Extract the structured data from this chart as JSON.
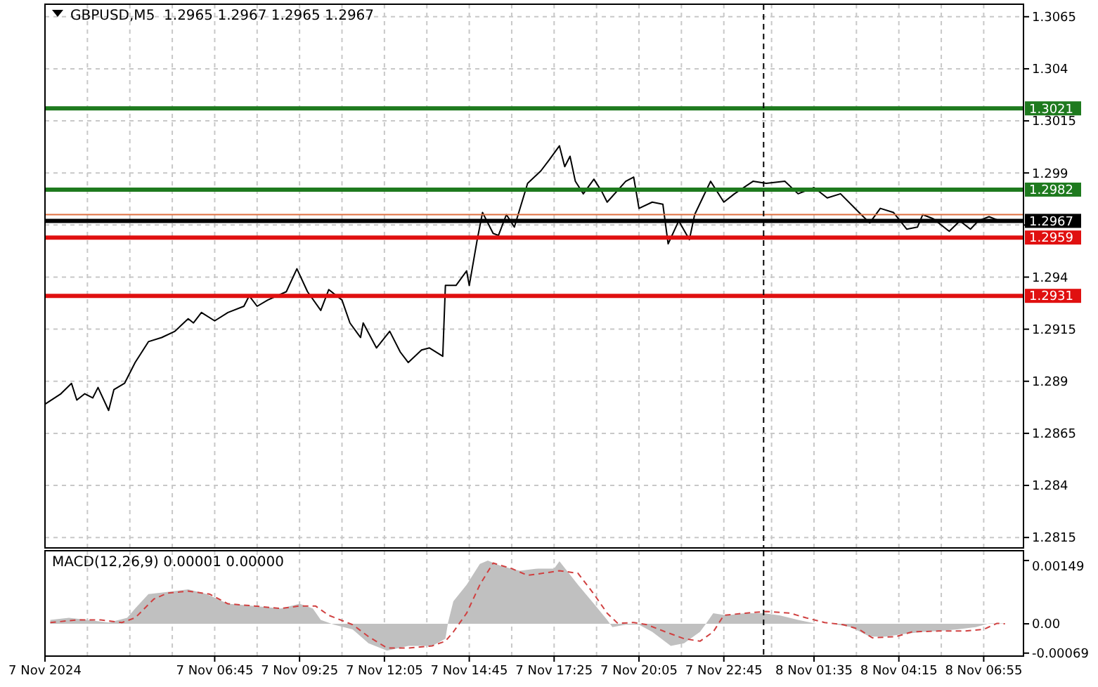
{
  "chart_data": [
    {
      "type": "line",
      "title": "GBPUSD,M5  1.2965 1.2967 1.2965 1.2967",
      "xlim": [
        "2024-11-07T01:25",
        "2024-11-08T08:10"
      ],
      "ylim": [
        1.281,
        1.3071
      ],
      "yticks": [
        1.2815,
        1.284,
        1.2865,
        1.289,
        1.2915,
        1.294,
        {
          "value": 1.2965,
          "label": null
        },
        1.299,
        1.3015,
        1.304,
        1.3065
      ],
      "xticks": [
        {
          "value": "2024-11-07T01:25",
          "label": null
        },
        {
          "value": "2024-11-07T02:45",
          "label": null
        },
        {
          "value": "2024-11-07T04:05",
          "label": null
        },
        {
          "value": "2024-11-07T05:25",
          "label": null
        },
        {
          "value": "2024-11-07T06:45",
          "label": null
        },
        {
          "value": "2024-11-07T08:05",
          "label": null
        },
        {
          "value": "2024-11-07T09:25",
          "label": null
        },
        {
          "value": "2024-11-07T10:45",
          "label": null
        },
        {
          "value": "2024-11-07T12:05",
          "label": null
        },
        {
          "value": "2024-11-07T13:25",
          "label": null
        },
        {
          "value": "2024-11-07T14:45",
          "label": null
        },
        {
          "value": "2024-11-07T16:05",
          "label": null
        },
        {
          "value": "2024-11-07T17:25",
          "label": null
        },
        {
          "value": "2024-11-07T18:45",
          "label": null
        },
        {
          "value": "2024-11-07T20:05",
          "label": null
        },
        {
          "value": "2024-11-07T21:25",
          "label": null
        },
        {
          "value": "2024-11-07T22:45",
          "label": null
        },
        {
          "value": "2024-11-08T00:15",
          "label": null
        },
        {
          "value": "2024-11-08T01:35",
          "label": null
        },
        {
          "value": "2024-11-08T02:55",
          "label": null
        },
        {
          "value": "2024-11-08T04:15",
          "label": null
        },
        {
          "value": "2024-11-08T05:35",
          "label": null
        },
        {
          "value": "2024-11-08T06:55",
          "label": null
        }
      ],
      "tick_labels": "y",
      "grid": true,
      "series": [
        {
          "color": "#000000",
          "x": [
            "2024-11-07T01:25",
            "2024-11-07T01:55",
            "2024-11-07T02:15",
            "2024-11-07T02:25",
            "2024-11-07T02:40",
            "2024-11-07T02:55",
            "2024-11-07T03:05",
            "2024-11-07T03:25",
            "2024-11-07T03:35",
            "2024-11-07T03:55",
            "2024-11-07T04:15",
            "2024-11-07T04:40",
            "2024-11-07T05:05",
            "2024-11-07T05:30",
            "2024-11-07T05:55",
            "2024-11-07T06:05",
            "2024-11-07T06:20",
            "2024-11-07T06:45",
            "2024-11-07T07:10",
            "2024-11-07T07:40",
            "2024-11-07T07:50",
            "2024-11-07T08:05",
            "2024-11-07T08:25",
            "2024-11-07T09:00",
            "2024-11-07T09:20",
            "2024-11-07T09:40",
            "2024-11-07T10:05",
            "2024-11-07T10:20",
            "2024-11-07T10:45",
            "2024-11-07T11:00",
            "2024-11-07T11:20",
            "2024-11-07T11:25",
            "2024-11-07T11:50",
            "2024-11-07T12:15",
            "2024-11-07T12:35",
            "2024-11-07T12:50",
            "2024-11-07T13:15",
            "2024-11-07T13:30",
            "2024-11-07T13:55",
            "2024-11-07T14:00",
            "2024-11-07T14:20",
            "2024-11-07T14:40",
            "2024-11-07T14:45",
            "2024-11-07T15:00",
            "2024-11-07T15:10",
            "2024-11-07T15:30",
            "2024-11-07T15:40",
            "2024-11-07T15:55",
            "2024-11-07T16:10",
            "2024-11-07T16:35",
            "2024-11-07T17:00",
            "2024-11-07T17:15",
            "2024-11-07T17:35",
            "2024-11-07T17:45",
            "2024-11-07T17:55",
            "2024-11-07T18:05",
            "2024-11-07T18:20",
            "2024-11-07T18:40",
            "2024-11-07T18:55",
            "2024-11-07T19:05",
            "2024-11-07T19:40",
            "2024-11-07T19:55",
            "2024-11-07T20:05",
            "2024-11-07T20:30",
            "2024-11-07T20:50",
            "2024-11-07T21:00",
            "2024-11-07T21:20",
            "2024-11-07T21:40",
            "2024-11-07T21:50",
            "2024-11-07T22:05",
            "2024-11-07T22:20",
            "2024-11-07T22:45",
            "2024-11-07T23:05",
            "2024-11-07T23:40",
            "2024-11-08T00:05",
            "2024-11-08T00:40",
            "2024-11-08T01:05",
            "2024-11-08T01:35",
            "2024-11-08T02:00",
            "2024-11-08T02:25",
            "2024-11-08T03:00",
            "2024-11-08T03:20",
            "2024-11-08T03:40",
            "2024-11-08T04:05",
            "2024-11-08T04:30",
            "2024-11-08T04:50",
            "2024-11-08T05:00",
            "2024-11-08T05:20",
            "2024-11-08T05:50",
            "2024-11-08T06:10",
            "2024-11-08T06:30",
            "2024-11-08T06:45",
            "2024-11-08T07:05",
            "2024-11-08T07:25",
            "2024-11-08T07:35"
          ],
          "values": [
            1.2879,
            1.2884,
            1.2889,
            1.2881,
            1.2884,
            1.2882,
            1.2887,
            1.2876,
            1.2886,
            1.2889,
            1.2899,
            1.2909,
            1.2911,
            1.2914,
            1.292,
            1.2918,
            1.2923,
            1.2919,
            1.2923,
            1.2926,
            1.2931,
            1.2926,
            1.2929,
            1.2933,
            1.2944,
            1.2933,
            1.2924,
            1.2934,
            1.2929,
            1.2918,
            1.2911,
            1.2918,
            1.2906,
            1.2914,
            1.2904,
            1.2899,
            1.2905,
            1.2906,
            1.2902,
            1.2936,
            1.2936,
            1.2943,
            1.2936,
            1.2958,
            1.2971,
            1.2961,
            1.296,
            1.297,
            1.2964,
            1.2985,
            1.2991,
            1.2996,
            1.3003,
            1.2993,
            1.2998,
            1.2986,
            1.298,
            1.2987,
            1.2981,
            1.2976,
            1.2986,
            1.2988,
            1.2973,
            1.2976,
            1.2975,
            1.2956,
            1.2967,
            1.2958,
            1.297,
            1.2978,
            1.2986,
            1.2976,
            1.298,
            1.2986,
            1.2985,
            1.2986,
            1.298,
            1.2983,
            1.2978,
            1.298,
            1.2971,
            1.2966,
            1.2973,
            1.2971,
            1.2963,
            1.2964,
            1.297,
            1.2968,
            1.2962,
            1.2967,
            1.2963,
            1.2967,
            1.2969,
            1.2967,
            1.2967
          ]
        }
      ],
      "ref_lines": [
        {
          "axis": "y",
          "value": 1.3021,
          "label": "1.3021",
          "color": "#1e7a1e"
        },
        {
          "axis": "y",
          "value": 1.2982,
          "label": "1.2982",
          "color": "#1e7a1e"
        },
        {
          "axis": "y",
          "value": 1.297,
          "label": null,
          "color": "#e07040"
        },
        {
          "axis": "y",
          "value": 1.2967,
          "label": "1.2967",
          "color": "#000000"
        },
        {
          "axis": "y",
          "value": 1.2959,
          "label": "1.2959",
          "color": "#e01010"
        },
        {
          "axis": "y",
          "value": 1.2931,
          "label": "1.2931",
          "color": "#e01010"
        },
        {
          "axis": "x",
          "value": "2024-11-08T00:00",
          "color": "#000000",
          "line_style": "dashed"
        }
      ]
    },
    {
      "type": "area",
      "title": "MACD(12,26,9) 0.00001 0.00000",
      "xlim": [
        "2024-11-07T01:25",
        "2024-11-08T08:10"
      ],
      "ylim": [
        -0.00076,
        0.00172
      ],
      "yticks": [
        -0.00069,
        {
          "value": 0,
          "label": "0.00"
        },
        0.00149
      ],
      "xticks": [
        {
          "value": "2024-11-07T01:25",
          "label": "7 Nov 2024"
        },
        {
          "value": "2024-11-07T02:45",
          "label": null
        },
        {
          "value": "2024-11-07T04:05",
          "label": null
        },
        {
          "value": "2024-11-07T05:25",
          "label": null
        },
        {
          "value": "2024-11-07T06:45",
          "label": "7 Nov 06:45"
        },
        {
          "value": "2024-11-07T08:05",
          "label": null
        },
        {
          "value": "2024-11-07T09:25",
          "label": "7 Nov 09:25"
        },
        {
          "value": "2024-11-07T10:45",
          "label": null
        },
        {
          "value": "2024-11-07T12:05",
          "label": "7 Nov 12:05"
        },
        {
          "value": "2024-11-07T13:25",
          "label": null
        },
        {
          "value": "2024-11-07T14:45",
          "label": "7 Nov 14:45"
        },
        {
          "value": "2024-11-07T16:05",
          "label": null
        },
        {
          "value": "2024-11-07T17:25",
          "label": "7 Nov 17:25"
        },
        {
          "value": "2024-11-07T18:45",
          "label": null
        },
        {
          "value": "2024-11-07T20:05",
          "label": "7 Nov 20:05"
        },
        {
          "value": "2024-11-07T21:25",
          "label": null
        },
        {
          "value": "2024-11-07T22:45",
          "label": "7 Nov 22:45"
        },
        {
          "value": "2024-11-08T00:15",
          "label": null
        },
        {
          "value": "2024-11-08T01:35",
          "label": "8 Nov 01:35"
        },
        {
          "value": "2024-11-08T02:55",
          "label": null
        },
        {
          "value": "2024-11-08T04:15",
          "label": "8 Nov 04:15"
        },
        {
          "value": "2024-11-08T05:35",
          "label": null
        },
        {
          "value": "2024-11-08T06:55",
          "label": "8 Nov 06:55"
        }
      ],
      "grid": "x",
      "series": [
        {
          "color": "#c0c0c0",
          "x": [
            "2024-11-07T01:35",
            "2024-11-07T02:10",
            "2024-11-07T02:45",
            "2024-11-07T03:25",
            "2024-11-07T04:00",
            "2024-11-07T04:15",
            "2024-11-07T04:40",
            "2024-11-07T05:15",
            "2024-11-07T05:55",
            "2024-11-07T06:30",
            "2024-11-07T07:10",
            "2024-11-07T08:00",
            "2024-11-07T08:50",
            "2024-11-07T09:25",
            "2024-11-07T09:50",
            "2024-11-07T10:05",
            "2024-11-07T10:30",
            "2024-11-07T11:05",
            "2024-11-07T11:35",
            "2024-11-07T12:10",
            "2024-11-07T12:50",
            "2024-11-07T13:35",
            "2024-11-07T14:00",
            "2024-11-07T14:05",
            "2024-11-07T14:15",
            "2024-11-07T14:40",
            "2024-11-07T15:05",
            "2024-11-07T15:20",
            "2024-11-07T15:45",
            "2024-11-07T16:20",
            "2024-11-07T16:55",
            "2024-11-07T17:25",
            "2024-11-07T17:35",
            "2024-11-07T18:10",
            "2024-11-07T18:40",
            "2024-11-07T19:05",
            "2024-11-07T19:15",
            "2024-11-07T19:40",
            "2024-11-07T20:05",
            "2024-11-07T20:30",
            "2024-11-07T21:05",
            "2024-11-07T21:30",
            "2024-11-07T22:00",
            "2024-11-07T22:10",
            "2024-11-07T22:25",
            "2024-11-07T22:50",
            "2024-11-07T23:25",
            "2024-11-08T00:00",
            "2024-11-08T00:30",
            "2024-11-08T01:05",
            "2024-11-08T01:40",
            "2024-11-08T02:10",
            "2024-11-08T02:45",
            "2024-11-08T03:20",
            "2024-11-08T03:50",
            "2024-11-08T04:25",
            "2024-11-08T05:00",
            "2024-11-08T05:30",
            "2024-11-08T06:05",
            "2024-11-08T06:40",
            "2024-11-08T07:05",
            "2024-11-08T07:35"
          ],
          "values": [
            9e-05,
            0.00014,
            9e-05,
            3e-05,
            0.00014,
            0.00036,
            0.0007,
            0.00075,
            0.00081,
            0.0007,
            0.00047,
            0.00042,
            0.00036,
            0.00047,
            0.00036,
            9e-05,
            -2e-05,
            -0.00013,
            -0.00046,
            -0.00063,
            -0.00052,
            -0.00052,
            -0.00035,
            3e-05,
            0.00053,
            0.00092,
            0.00141,
            0.00149,
            0.00136,
            0.00125,
            0.0013,
            0.0013,
            0.00147,
            0.00092,
            0.00047,
            9e-05,
            -8e-05,
            -2e-05,
            -2e-05,
            -0.00019,
            -0.00052,
            -0.00046,
            -0.00019,
            -2e-05,
            0.00025,
            0.0002,
            0.00025,
            0.00025,
            0.0002,
            9e-05,
            0,
            0,
            -8e-05,
            -0.0003,
            -0.0003,
            -0.00024,
            -0.00019,
            -0.00017,
            -0.00013,
            -8e-05,
            1e-05,
            1e-05
          ]
        },
        {
          "type": "line",
          "color": "#d04040",
          "line_style": "dashed",
          "x": [
            "2024-11-07T01:35",
            "2024-11-07T02:25",
            "2024-11-07T03:10",
            "2024-11-07T03:50",
            "2024-11-07T04:15",
            "2024-11-07T04:50",
            "2024-11-07T05:15",
            "2024-11-07T05:55",
            "2024-11-07T06:35",
            "2024-11-07T07:10",
            "2024-11-07T08:00",
            "2024-11-07T08:50",
            "2024-11-07T09:25",
            "2024-11-07T09:55",
            "2024-11-07T10:20",
            "2024-11-07T11:05",
            "2024-11-07T11:35",
            "2024-11-07T12:10",
            "2024-11-07T12:50",
            "2024-11-07T13:35",
            "2024-11-07T14:00",
            "2024-11-07T14:15",
            "2024-11-07T14:40",
            "2024-11-07T15:05",
            "2024-11-07T15:30",
            "2024-11-07T16:05",
            "2024-11-07T16:35",
            "2024-11-07T17:10",
            "2024-11-07T17:35",
            "2024-11-07T18:10",
            "2024-11-07T18:40",
            "2024-11-07T19:05",
            "2024-11-07T19:25",
            "2024-11-07T19:55",
            "2024-11-07T20:20",
            "2024-11-07T20:55",
            "2024-11-07T21:30",
            "2024-11-07T22:00",
            "2024-11-07T22:25",
            "2024-11-07T22:45",
            "2024-11-07T23:25",
            "2024-11-08T00:05",
            "2024-11-08T00:50",
            "2024-11-08T01:20",
            "2024-11-08T01:55",
            "2024-11-08T02:30",
            "2024-11-08T03:00",
            "2024-11-08T03:25",
            "2024-11-08T04:10",
            "2024-11-08T04:40",
            "2024-11-08T05:30",
            "2024-11-08T06:20",
            "2024-11-08T06:55",
            "2024-11-08T07:20",
            "2024-11-08T07:35"
          ],
          "values": [
            3e-05,
            9e-05,
            9e-05,
            3e-05,
            0.00014,
            0.00058,
            0.00072,
            0.00077,
            0.0007,
            0.00047,
            0.00042,
            0.00036,
            0.00042,
            0.00042,
            0.0002,
            -2e-05,
            -0.0003,
            -0.00057,
            -0.00057,
            -0.00052,
            -0.00041,
            -0.00019,
            0.00025,
            0.00092,
            0.00143,
            0.0013,
            0.00114,
            0.0012,
            0.00125,
            0.00119,
            0.0007,
            0.00025,
            1e-05,
            3e-05,
            -2e-05,
            -0.00019,
            -0.00035,
            -0.00041,
            -0.00019,
            0.0002,
            0.00025,
            0.00029,
            0.00025,
            0.00014,
            3e-05,
            -2e-05,
            -0.00013,
            -0.00033,
            -0.0003,
            -0.00019,
            -0.00017,
            -0.00017,
            -0.00013,
            1e-05,
            0
          ]
        }
      ],
      "ref_lines": [
        {
          "axis": "x",
          "value": "2024-11-08T00:00",
          "color": "#000000",
          "line_style": "dashed"
        }
      ]
    }
  ]
}
